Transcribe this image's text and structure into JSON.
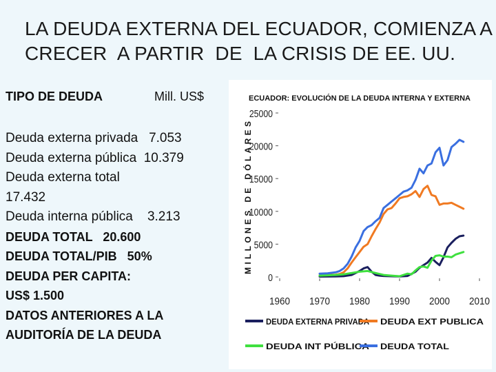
{
  "slide": {
    "title_lines": [
      "LA DEUDA EXTERNA DEL ECUADOR, COMIENZA A",
      "CRECER  A PARTIR  DE  LA CRISIS DE EE. UU."
    ]
  },
  "debt_table": {
    "header_label": "TIPO DE DEUDA",
    "header_unit": "Mill. US$",
    "lines": [
      {
        "text": "Deuda externa privada   7.053",
        "bold": false
      },
      {
        "text": "Deuda externa pública  10.379",
        "bold": false
      },
      {
        "text": "Deuda externa total",
        "bold": false
      },
      {
        "text": "17.432",
        "bold": false
      },
      {
        "text": "Deuda interna pública    3.213",
        "bold": false
      },
      {
        "text": "DEUDA TOTAL   20.600",
        "bold": true
      },
      {
        "text": "DEUDA TOTAL/PIB   50%",
        "bold": true
      },
      {
        "text": "DEUDA PER CAPITA:",
        "bold": true
      },
      {
        "text": "US$ 1.500",
        "bold": true
      },
      {
        "text": "DATOS ANTERIORES A LA",
        "bold": true
      },
      {
        "text": "AUDITORÍA DE LA DEUDA",
        "bold": true
      }
    ]
  },
  "chart_data": {
    "type": "line",
    "title": "ECUADOR: EVOLUCIÓN DE LA DEUDA INTERNA Y EXTERNA",
    "xlabel": "",
    "ylabel": "MILLONES DE DÓLARES",
    "xlim": [
      1960,
      2010
    ],
    "ylim": [
      0,
      25000
    ],
    "x_ticks": [
      "1960",
      "1970",
      "1980",
      "1990",
      "2000",
      "2010"
    ],
    "y_ticks": [
      "0",
      "5000",
      "10000",
      "15000",
      "20000",
      "25000"
    ],
    "legend": "bottom",
    "series": [
      {
        "name": "DEUDA EXTERNA PRIVADA",
        "color": "#1a1f5e",
        "x": [
          1970,
          1972,
          1974,
          1976,
          1978,
          1979,
          1980,
          1981,
          1982,
          1983,
          1984,
          1985,
          1986,
          1988,
          1990,
          1992,
          1994,
          1995,
          1996,
          1997,
          1998,
          1999,
          2000,
          2001,
          2002,
          2003,
          2004,
          2005,
          2006
        ],
        "y": [
          50,
          60,
          80,
          120,
          300,
          600,
          900,
          1300,
          1500,
          800,
          300,
          200,
          150,
          100,
          80,
          150,
          800,
          1400,
          1800,
          2200,
          2900,
          2300,
          1800,
          3000,
          4500,
          5200,
          5800,
          6200,
          6300
        ]
      },
      {
        "name": "DEUDA EXT PUBLICA",
        "color": "#f07a22",
        "x": [
          1970,
          1972,
          1974,
          1975,
          1976,
          1977,
          1978,
          1979,
          1980,
          1981,
          1982,
          1983,
          1984,
          1985,
          1986,
          1987,
          1988,
          1989,
          1990,
          1991,
          1992,
          1993,
          1994,
          1995,
          1996,
          1997,
          1998,
          1999,
          2000,
          2001,
          2002,
          2003,
          2004,
          2005,
          2006
        ],
        "y": [
          250,
          300,
          350,
          450,
          700,
          1300,
          2200,
          3000,
          3800,
          4600,
          5000,
          6200,
          7300,
          8300,
          9600,
          10300,
          10500,
          11200,
          12000,
          12200,
          12300,
          12600,
          13100,
          12200,
          13400,
          13900,
          12500,
          12300,
          11000,
          11200,
          11200,
          11300,
          11000,
          10700,
          10400
        ]
      },
      {
        "name": "DEUDA INT PÚBLICA",
        "color": "#3fe03f",
        "x": [
          1970,
          1972,
          1974,
          1976,
          1978,
          1980,
          1982,
          1984,
          1986,
          1988,
          1990,
          1992,
          1993,
          1994,
          1995,
          1996,
          1997,
          1998,
          1999,
          2000,
          2001,
          2002,
          2003,
          2004,
          2005,
          2006
        ],
        "y": [
          200,
          250,
          300,
          400,
          600,
          800,
          900,
          600,
          300,
          200,
          100,
          500,
          400,
          1000,
          1500,
          1600,
          1400,
          2500,
          3200,
          3300,
          3100,
          3100,
          3000,
          3400,
          3600,
          3800
        ]
      },
      {
        "name": "DEUDA TOTAL",
        "color": "#3a6fe0",
        "x": [
          1970,
          1972,
          1974,
          1975,
          1976,
          1977,
          1978,
          1979,
          1980,
          1981,
          1982,
          1983,
          1984,
          1985,
          1986,
          1987,
          1988,
          1989,
          1990,
          1991,
          1992,
          1993,
          1994,
          1995,
          1996,
          1997,
          1998,
          1999,
          2000,
          2001,
          2002,
          2003,
          2004,
          2005,
          2006
        ],
        "y": [
          500,
          550,
          700,
          900,
          1300,
          2000,
          3100,
          4500,
          5500,
          7000,
          7600,
          7900,
          8500,
          9000,
          10500,
          11000,
          11500,
          12000,
          12500,
          13000,
          13200,
          13600,
          14800,
          16500,
          15800,
          17000,
          17300,
          19000,
          19700,
          17000,
          17800,
          19800,
          20300,
          20900,
          20600
        ]
      }
    ]
  }
}
